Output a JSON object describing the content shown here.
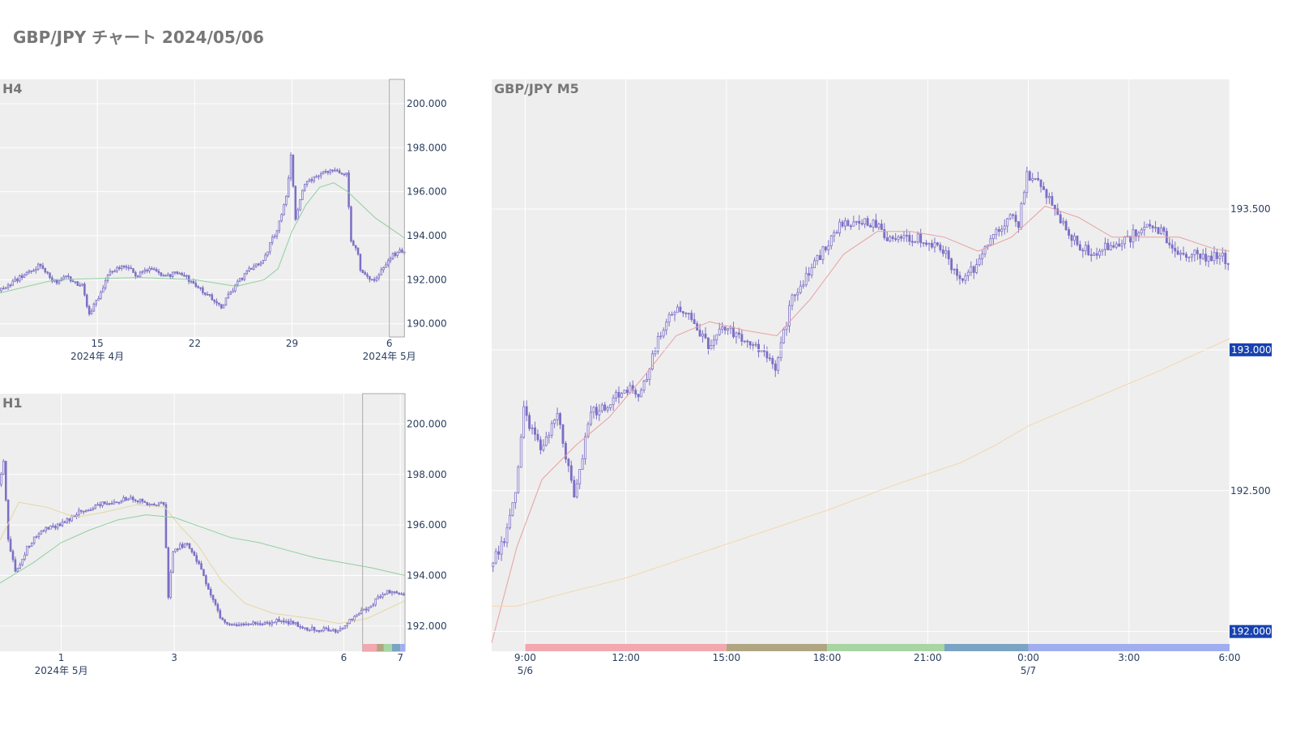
{
  "title": "GBP/JPY チャート 2024/05/06",
  "colors": {
    "plot_bg": "#eeeeee",
    "grid": "#ffffff",
    "candle": "#7b6fc6",
    "candle_fill": "#ffffff",
    "ma_h4": "#8fcfa0",
    "ma_h1_fast": "#e5d6a0",
    "ma_h1_slow": "#8fcfa0",
    "ma_m5_fast": "#e8a0a0",
    "ma_m5_slow": "#f2d7b0",
    "price_badge": "#1742b0",
    "window_edge": "#aaaaaa"
  },
  "chart_data": [
    {
      "id": "h4",
      "type": "candlestick",
      "title": "H4",
      "y_ticks": [
        190000,
        192000,
        194000,
        196000,
        198000,
        200000
      ],
      "y_tick_labels": [
        "190.000",
        "192.000",
        "194.000",
        "196.000",
        "198.000",
        "200.000"
      ],
      "ylim": [
        189400,
        201100
      ],
      "xlim": [
        "2024-04-08",
        "2024-05-07 03:00"
      ],
      "x_ticks": [
        {
          "at": "2024-04-15",
          "label": "15",
          "sub": "2024年 4月"
        },
        {
          "at": "2024-04-22",
          "label": "22",
          "sub": ""
        },
        {
          "at": "2024-04-29",
          "label": "29",
          "sub": ""
        },
        {
          "at": "2024-05-06",
          "label": "6",
          "sub": "2024年 5月"
        }
      ],
      "highlight_range": [
        "2024-05-06",
        "2024-05-07 02:00"
      ],
      "close_path": [
        [
          "2024-04-08",
          191500
        ],
        [
          "2024-04-09",
          191900
        ],
        [
          "2024-04-10",
          192300
        ],
        [
          "2024-04-11",
          192700
        ],
        [
          "2024-04-12",
          191900
        ],
        [
          "2024-04-13",
          192100
        ],
        [
          "2024-04-14",
          191700
        ],
        [
          "2024-04-14 12:00",
          190400
        ],
        [
          "2024-04-15",
          191000
        ],
        [
          "2024-04-16",
          192400
        ],
        [
          "2024-04-17",
          192600
        ],
        [
          "2024-04-18",
          192200
        ],
        [
          "2024-04-19",
          192500
        ],
        [
          "2024-04-20",
          192100
        ],
        [
          "2024-04-21",
          192400
        ],
        [
          "2024-04-22",
          191800
        ],
        [
          "2024-04-23",
          191300
        ],
        [
          "2024-04-24",
          190800
        ],
        [
          "2024-04-25",
          191700
        ],
        [
          "2024-04-26",
          192500
        ],
        [
          "2024-04-27",
          192900
        ],
        [
          "2024-04-28",
          194300
        ],
        [
          "2024-04-28 16:00",
          195800
        ],
        [
          "2024-04-29",
          197600
        ],
        [
          "2024-04-29 08:00",
          194700
        ],
        [
          "2024-04-30",
          196400
        ],
        [
          "2024-05-01",
          196700
        ],
        [
          "2024-05-02",
          197000
        ],
        [
          "2024-05-03",
          196800
        ],
        [
          "2024-05-03 08:00",
          193800
        ],
        [
          "2024-05-03 20:00",
          193200
        ],
        [
          "2024-05-04",
          192500
        ],
        [
          "2024-05-05",
          191900
        ],
        [
          "2024-05-06",
          192900
        ],
        [
          "2024-05-06 16:00",
          193300
        ],
        [
          "2024-05-07 02:00",
          193300
        ]
      ],
      "ma": [
        {
          "color_key": "ma_h4",
          "points": [
            [
              "2024-04-08",
              191400
            ],
            [
              "2024-04-12",
              192000
            ],
            [
              "2024-04-18",
              192100
            ],
            [
              "2024-04-22",
              192000
            ],
            [
              "2024-04-25",
              191700
            ],
            [
              "2024-04-27",
              192000
            ],
            [
              "2024-04-28",
              192500
            ],
            [
              "2024-04-29",
              194200
            ],
            [
              "2024-04-30",
              195400
            ],
            [
              "2024-05-01",
              196200
            ],
            [
              "2024-05-02",
              196400
            ],
            [
              "2024-05-03",
              196000
            ],
            [
              "2024-05-05",
              194800
            ],
            [
              "2024-05-07 02:00",
              193900
            ]
          ]
        }
      ]
    },
    {
      "id": "h1",
      "type": "candlestick",
      "title": "H1",
      "y_ticks": [
        192000,
        194000,
        196000,
        198000,
        200000
      ],
      "y_tick_labels": [
        "192.000",
        "194.000",
        "196.000",
        "198.000",
        "200.000"
      ],
      "ylim": [
        191000,
        201200
      ],
      "xlim": [
        "2024-04-29 22:00",
        "2024-05-07 02:00"
      ],
      "x_ticks": [
        {
          "at": "2024-05-01",
          "label": "1",
          "sub": "2024年 5月"
        },
        {
          "at": "2024-05-03",
          "label": "3",
          "sub": ""
        },
        {
          "at": "2024-05-06",
          "label": "6",
          "sub": ""
        },
        {
          "at": "2024-05-07",
          "label": "7",
          "sub": ""
        }
      ],
      "highlight_range": [
        "2024-05-06 08:00",
        "2024-05-07 02:00"
      ],
      "close_path": [
        [
          "2024-04-29 22:00",
          197600
        ],
        [
          "2024-04-30",
          198600
        ],
        [
          "2024-04-30 02:00",
          195500
        ],
        [
          "2024-04-30 05:00",
          194100
        ],
        [
          "2024-04-30 10:00",
          195100
        ],
        [
          "2024-04-30 16:00",
          195800
        ],
        [
          "2024-05-01",
          196000
        ],
        [
          "2024-05-01 08:00",
          196500
        ],
        [
          "2024-05-01 16:00",
          196800
        ],
        [
          "2024-05-02",
          196900
        ],
        [
          "2024-05-02 06:00",
          197100
        ],
        [
          "2024-05-02 14:00",
          196800
        ],
        [
          "2024-05-02 20:00",
          196900
        ],
        [
          "2024-05-02 22:00",
          193200
        ],
        [
          "2024-05-03",
          195000
        ],
        [
          "2024-05-03 06:00",
          195300
        ],
        [
          "2024-05-03 12:00",
          194200
        ],
        [
          "2024-05-03 20:00",
          192400
        ],
        [
          "2024-05-04",
          192000
        ],
        [
          "2024-05-04 08:00",
          192100
        ],
        [
          "2024-05-05",
          192200
        ],
        [
          "2024-05-05 08:00",
          191900
        ],
        [
          "2024-05-05 22:00",
          191800
        ],
        [
          "2024-05-06 06:00",
          192400
        ],
        [
          "2024-05-06 14:00",
          193000
        ],
        [
          "2024-05-06 20:00",
          193400
        ],
        [
          "2024-05-07 02:00",
          193300
        ]
      ],
      "ma": [
        {
          "color_key": "ma_h1_fast",
          "points": [
            [
              "2024-04-29 22:00",
              195400
            ],
            [
              "2024-04-30 06:00",
              196900
            ],
            [
              "2024-04-30 18:00",
              196700
            ],
            [
              "2024-05-01 06:00",
              196300
            ],
            [
              "2024-05-01 18:00",
              196500
            ],
            [
              "2024-05-02 08:00",
              196800
            ],
            [
              "2024-05-02 20:00",
              196700
            ],
            [
              "2024-05-03 02:00",
              196000
            ],
            [
              "2024-05-03 10:00",
              195200
            ],
            [
              "2024-05-03 20:00",
              193800
            ],
            [
              "2024-05-04 06:00",
              192900
            ],
            [
              "2024-05-04 18:00",
              192500
            ],
            [
              "2024-05-05 10:00",
              192300
            ],
            [
              "2024-05-05 22:00",
              192100
            ],
            [
              "2024-05-06 10:00",
              192300
            ],
            [
              "2024-05-07 02:00",
              193000
            ]
          ]
        },
        {
          "color_key": "ma_h1_slow",
          "points": [
            [
              "2024-04-29 22:00",
              193700
            ],
            [
              "2024-04-30 12:00",
              194500
            ],
            [
              "2024-05-01",
              195300
            ],
            [
              "2024-05-01 12:00",
              195800
            ],
            [
              "2024-05-02",
              196200
            ],
            [
              "2024-05-02 12:00",
              196400
            ],
            [
              "2024-05-03",
              196300
            ],
            [
              "2024-05-03 12:00",
              195900
            ],
            [
              "2024-05-04",
              195500
            ],
            [
              "2024-05-04 12:00",
              195300
            ],
            [
              "2024-05-05",
              195000
            ],
            [
              "2024-05-05 12:00",
              194700
            ],
            [
              "2024-05-06",
              194500
            ],
            [
              "2024-05-06 12:00",
              194300
            ],
            [
              "2024-05-07 02:00",
              194000
            ]
          ]
        }
      ],
      "sessions": [
        {
          "from": "2024-05-06 08:00",
          "to": "2024-05-06 14:00",
          "color": "#f2a8ae"
        },
        {
          "from": "2024-05-06 14:00",
          "to": "2024-05-06 17:00",
          "color": "#b0a682"
        },
        {
          "from": "2024-05-06 17:00",
          "to": "2024-05-06 20:30",
          "color": "#a8d5a4"
        },
        {
          "from": "2024-05-06 20:30",
          "to": "2024-05-07",
          "color": "#7ba3c4"
        },
        {
          "from": "2024-05-07",
          "to": "2024-05-07 02:00",
          "color": "#a0aef0"
        }
      ]
    },
    {
      "id": "m5",
      "type": "candlestick",
      "title": "GBP/JPY M5",
      "y_ticks": [
        192500,
        193500
      ],
      "y_tick_labels": [
        "192.500",
        "193.500"
      ],
      "price_badges": [
        {
          "value": 193000,
          "label": "193.000"
        },
        {
          "value": 192000,
          "label": "192.000"
        }
      ],
      "ylim": [
        191930,
        193960
      ],
      "xlim": [
        "2024-05-06 08:00",
        "2024-05-07 06:00"
      ],
      "x_ticks": [
        {
          "at": "2024-05-06 09:00",
          "label": "9:00",
          "sub": "5/6"
        },
        {
          "at": "2024-05-06 12:00",
          "label": "12:00",
          "sub": ""
        },
        {
          "at": "2024-05-06 15:00",
          "label": "15:00",
          "sub": ""
        },
        {
          "at": "2024-05-06 18:00",
          "label": "18:00",
          "sub": ""
        },
        {
          "at": "2024-05-06 21:00",
          "label": "21:00",
          "sub": ""
        },
        {
          "at": "2024-05-07 00:00",
          "label": "0:00",
          "sub": "5/7"
        },
        {
          "at": "2024-05-07 03:00",
          "label": "3:00",
          "sub": ""
        },
        {
          "at": "2024-05-07 06:00",
          "label": "6:00",
          "sub": ""
        }
      ],
      "close_path": [
        [
          "2024-05-06 08:00",
          192230
        ],
        [
          "2024-05-06 08:30",
          192350
        ],
        [
          "2024-05-06 08:45",
          192500
        ],
        [
          "2024-05-06 09:00",
          192780
        ],
        [
          "2024-05-06 09:30",
          192650
        ],
        [
          "2024-05-06 10:00",
          192780
        ],
        [
          "2024-05-06 10:30",
          192480
        ],
        [
          "2024-05-06 11:00",
          192780
        ],
        [
          "2024-05-06 11:30",
          192800
        ],
        [
          "2024-05-06 12:00",
          192870
        ],
        [
          "2024-05-06 12:30",
          192840
        ],
        [
          "2024-05-06 13:00",
          193040
        ],
        [
          "2024-05-06 13:30",
          193150
        ],
        [
          "2024-05-06 14:00",
          193110
        ],
        [
          "2024-05-06 14:30",
          193020
        ],
        [
          "2024-05-06 15:00",
          193080
        ],
        [
          "2024-05-06 15:30",
          193030
        ],
        [
          "2024-05-06 16:00",
          193000
        ],
        [
          "2024-05-06 16:30",
          192940
        ],
        [
          "2024-05-06 17:00",
          193180
        ],
        [
          "2024-05-06 17:30",
          193270
        ],
        [
          "2024-05-06 18:00",
          193370
        ],
        [
          "2024-05-06 18:30",
          193450
        ],
        [
          "2024-05-06 19:00",
          193460
        ],
        [
          "2024-05-06 19:30",
          193440
        ],
        [
          "2024-05-06 20:00",
          193380
        ],
        [
          "2024-05-06 20:30",
          193400
        ],
        [
          "2024-05-06 21:00",
          193390
        ],
        [
          "2024-05-06 21:30",
          193350
        ],
        [
          "2024-05-06 22:00",
          193250
        ],
        [
          "2024-05-06 22:30",
          193300
        ],
        [
          "2024-05-06 23:00",
          193400
        ],
        [
          "2024-05-06 23:30",
          193480
        ],
        [
          "2024-05-06 23:45",
          193450
        ],
        [
          "2024-05-07 00:00",
          193620
        ],
        [
          "2024-05-07 00:30",
          193570
        ],
        [
          "2024-05-07 01:00",
          193450
        ],
        [
          "2024-05-07 01:30",
          193380
        ],
        [
          "2024-05-07 02:00",
          193330
        ],
        [
          "2024-05-07 02:30",
          193380
        ],
        [
          "2024-05-07 03:00",
          193390
        ],
        [
          "2024-05-07 03:30",
          193450
        ],
        [
          "2024-05-07 04:00",
          193420
        ],
        [
          "2024-05-07 04:30",
          193330
        ],
        [
          "2024-05-07 05:00",
          193340
        ],
        [
          "2024-05-07 05:30",
          193320
        ],
        [
          "2024-05-07 05:45",
          193350
        ],
        [
          "2024-05-07 06:00",
          193300
        ]
      ],
      "ma": [
        {
          "color_key": "ma_m5_fast",
          "points": [
            [
              "2024-05-06 08:00",
              191960
            ],
            [
              "2024-05-06 08:45",
              192300
            ],
            [
              "2024-05-06 09:30",
              192540
            ],
            [
              "2024-05-06 10:30",
              192660
            ],
            [
              "2024-05-06 11:30",
              192760
            ],
            [
              "2024-05-06 12:30",
              192900
            ],
            [
              "2024-05-06 13:30",
              193050
            ],
            [
              "2024-05-06 14:30",
              193100
            ],
            [
              "2024-05-06 15:30",
              193070
            ],
            [
              "2024-05-06 16:30",
              193050
            ],
            [
              "2024-05-06 17:30",
              193180
            ],
            [
              "2024-05-06 18:30",
              193340
            ],
            [
              "2024-05-06 19:30",
              193420
            ],
            [
              "2024-05-06 20:30",
              193420
            ],
            [
              "2024-05-06 21:30",
              193400
            ],
            [
              "2024-05-06 22:30",
              193350
            ],
            [
              "2024-05-06 23:30",
              193400
            ],
            [
              "2024-05-07 00:30",
              193510
            ],
            [
              "2024-05-07 01:30",
              193470
            ],
            [
              "2024-05-07 02:30",
              193400
            ],
            [
              "2024-05-07 03:30",
              193400
            ],
            [
              "2024-05-07 04:30",
              193400
            ],
            [
              "2024-05-07 05:30",
              193360
            ],
            [
              "2024-05-07 06:00",
              193350
            ]
          ]
        },
        {
          "color_key": "ma_m5_slow",
          "points": [
            [
              "2024-05-06 08:00",
              192090
            ],
            [
              "2024-05-06 08:45",
              192090
            ],
            [
              "2024-05-06 10:00",
              192130
            ],
            [
              "2024-05-06 12:00",
              192190
            ],
            [
              "2024-05-06 14:00",
              192270
            ],
            [
              "2024-05-06 16:00",
              192350
            ],
            [
              "2024-05-06 18:00",
              192430
            ],
            [
              "2024-05-06 20:00",
              192520
            ],
            [
              "2024-05-06 22:00",
              192600
            ],
            [
              "2024-05-06 23:00",
              192660
            ],
            [
              "2024-05-07",
              192730
            ],
            [
              "2024-05-07 02:00",
              192830
            ],
            [
              "2024-05-07 04:00",
              192930
            ],
            [
              "2024-05-07 06:00",
              193040
            ]
          ]
        }
      ],
      "sessions": [
        {
          "from": "2024-05-06 09:00",
          "to": "2024-05-06 15:00",
          "color": "#f2a8ae"
        },
        {
          "from": "2024-05-06 15:00",
          "to": "2024-05-06 18:00",
          "color": "#b0a682"
        },
        {
          "from": "2024-05-06 18:00",
          "to": "2024-05-06 21:30",
          "color": "#a8d5a4"
        },
        {
          "from": "2024-05-06 21:30",
          "to": "2024-05-07",
          "color": "#7ba3c4"
        },
        {
          "from": "2024-05-07",
          "to": "2024-05-07 06:00",
          "color": "#a0aef0"
        }
      ]
    }
  ]
}
